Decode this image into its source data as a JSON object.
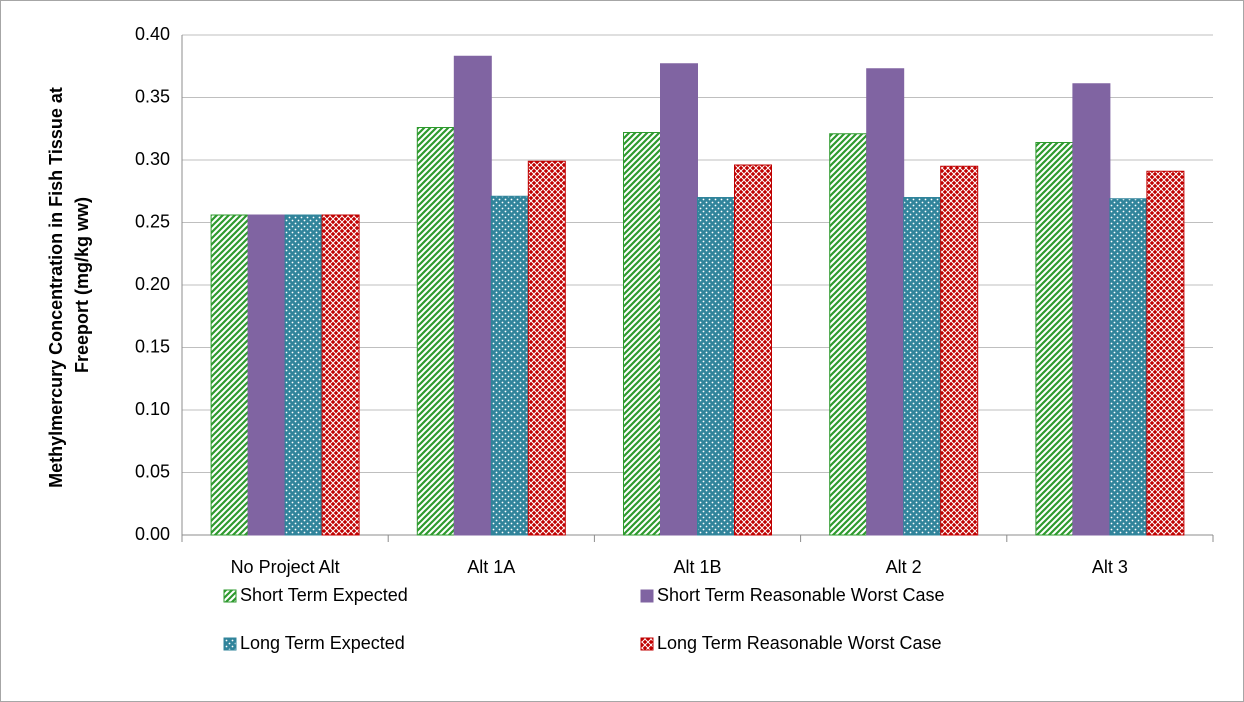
{
  "chart_data": {
    "type": "bar",
    "ylabel": [
      "Methylmercury Concentration in Fish Tissue at",
      "Freeport (mg/kg ww)"
    ],
    "categories": [
      "No Project Alt",
      "Alt 1A",
      "Alt 1B",
      "Alt 2",
      "Alt 3"
    ],
    "series": [
      {
        "name": "Short Term Expected",
        "color": "#2e9a2e",
        "pattern": "diagonal",
        "values": [
          0.256,
          0.326,
          0.322,
          0.321,
          0.314
        ]
      },
      {
        "name": "Short Term Reasonable Worst Case",
        "color": "#8064a2",
        "pattern": "solid",
        "values": [
          0.256,
          0.383,
          0.377,
          0.373,
          0.361
        ]
      },
      {
        "name": "Long Term Expected",
        "color": "#31849b",
        "pattern": "dots",
        "values": [
          0.256,
          0.271,
          0.27,
          0.27,
          0.269
        ]
      },
      {
        "name": "Long Term Reasonable Worst Case",
        "color": "#c00000",
        "pattern": "crosshatch",
        "values": [
          0.256,
          0.299,
          0.296,
          0.295,
          0.291
        ]
      }
    ],
    "ylim": [
      0,
      0.4
    ],
    "yticks": [
      {
        "value": 0,
        "label": "0.00"
      },
      0.05,
      {
        "value": 0.1,
        "label": "0.10"
      },
      0.15,
      {
        "value": 0.2,
        "label": "0.20"
      },
      0.25,
      {
        "value": 0.3,
        "label": "0.30"
      },
      0.35,
      {
        "value": 0.4,
        "label": "0.40"
      }
    ],
    "grid": true
  }
}
